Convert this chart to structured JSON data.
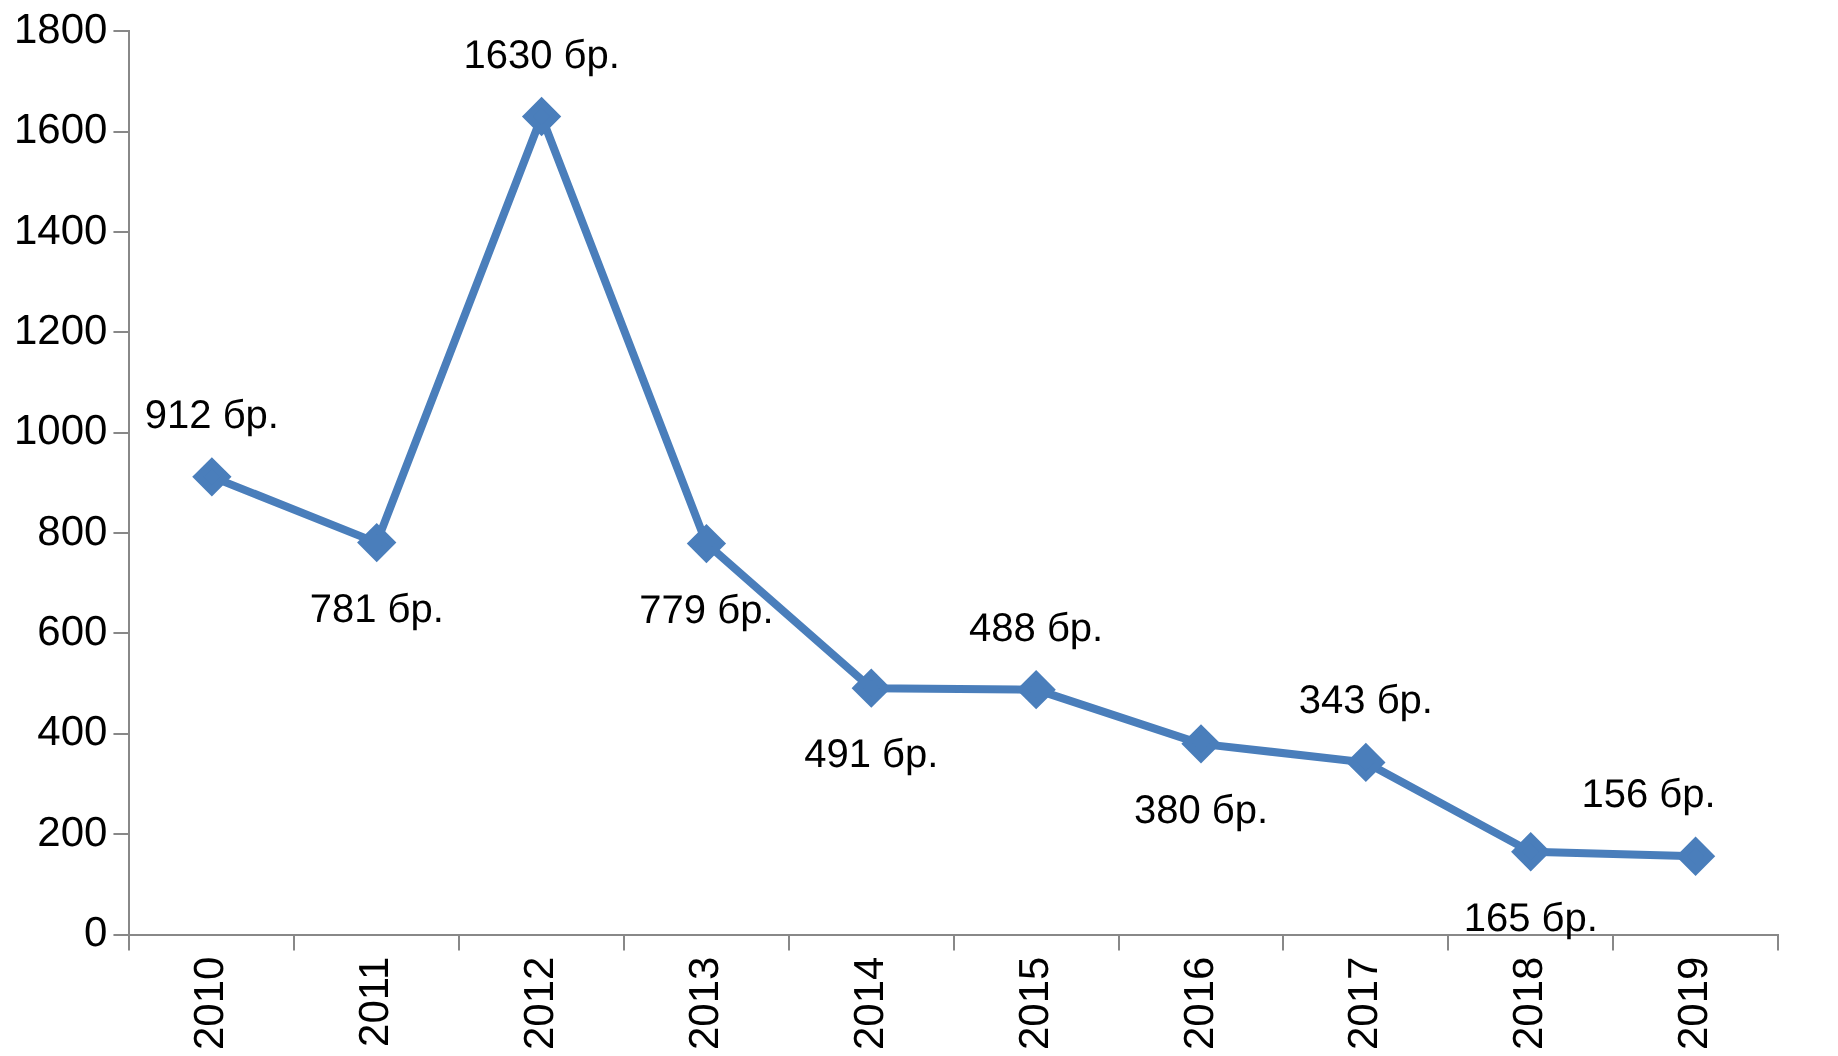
{
  "chart_data": {
    "type": "line",
    "categories": [
      "2010",
      "2011",
      "2012",
      "2013",
      "2014",
      "2015",
      "2016",
      "2017",
      "2018",
      "2019"
    ],
    "series": [
      {
        "color": "#4a7ebb",
        "values": [
          912,
          781,
          1630,
          779,
          491,
          488,
          380,
          343,
          165,
          156
        ],
        "value_labels": [
          "912 бр.",
          "781 бр.",
          "1630 бр.",
          "779 бр.",
          "491 бр.",
          "488 бр.",
          "380 бр.",
          "343 бр.",
          "165 бр.",
          "156 бр."
        ]
      }
    ],
    "ylim": [
      0,
      1800
    ],
    "yticks": [
      0,
      200,
      400,
      600,
      800,
      1000,
      1200,
      1400,
      1600,
      1800
    ],
    "grid": false,
    "legend": false,
    "marker": "diamond",
    "line_style": "solid"
  }
}
